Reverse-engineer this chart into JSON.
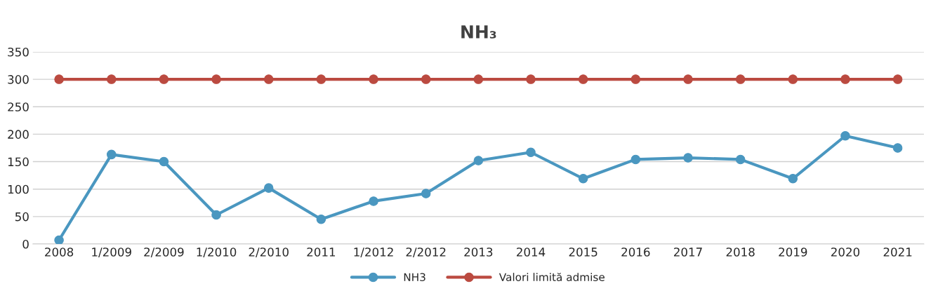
{
  "chart_data": {
    "type": "line",
    "title": "NH₃",
    "categories": [
      "2008",
      "1/2009",
      "2/2009",
      "1/2010",
      "2/2010",
      "2011",
      "1/2012",
      "2/2012",
      "2013",
      "2014",
      "2015",
      "2016",
      "2017",
      "2018",
      "2019",
      "2020",
      "2021"
    ],
    "series": [
      {
        "name": "NH3",
        "color": "#4a97c0",
        "values": [
          7,
          163,
          150,
          53,
          102,
          45,
          78,
          92,
          152,
          167,
          119,
          154,
          157,
          154,
          119,
          197,
          175
        ]
      },
      {
        "name": "Valori limită admise",
        "color": "#bb4a40",
        "values": [
          300,
          300,
          300,
          300,
          300,
          300,
          300,
          300,
          300,
          300,
          300,
          300,
          300,
          300,
          300,
          300,
          300
        ]
      }
    ],
    "ylim": [
      0,
      350
    ],
    "yticks": [
      0,
      50,
      100,
      150,
      200,
      250,
      300,
      350
    ],
    "grid": "y",
    "legend": "bottom",
    "marker": "circle",
    "line_style": "solid"
  }
}
